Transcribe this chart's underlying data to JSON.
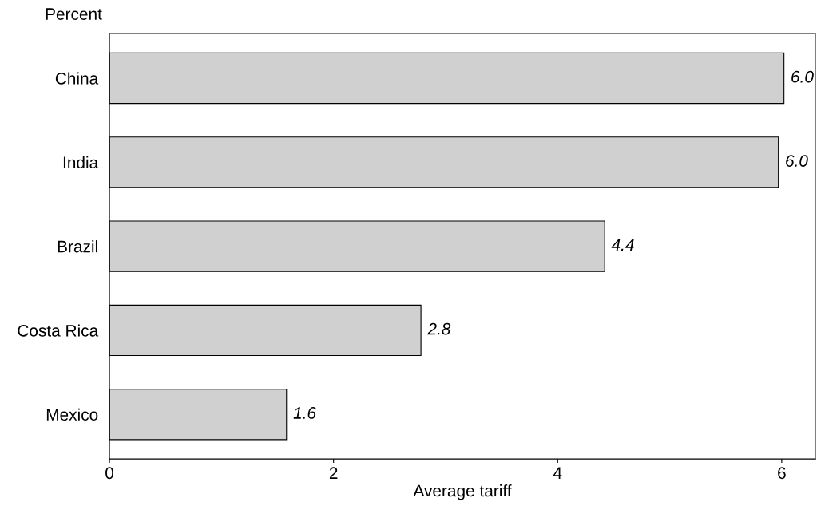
{
  "chart_data": {
    "type": "bar",
    "orientation": "horizontal",
    "ylabel": "Percent",
    "xlabel": "Average tariff",
    "categories": [
      "China",
      "India",
      "Brazil",
      "Costa Rica",
      "Mexico"
    ],
    "values": [
      6.02,
      5.97,
      4.42,
      2.78,
      1.58
    ],
    "value_labels": [
      "6.0",
      "6.0",
      "4.4",
      "2.8",
      "1.6"
    ],
    "color": "#d0d0d0",
    "xlim": [
      0,
      6.3
    ],
    "xticks": [
      0,
      2,
      4,
      6
    ],
    "grid": false
  }
}
